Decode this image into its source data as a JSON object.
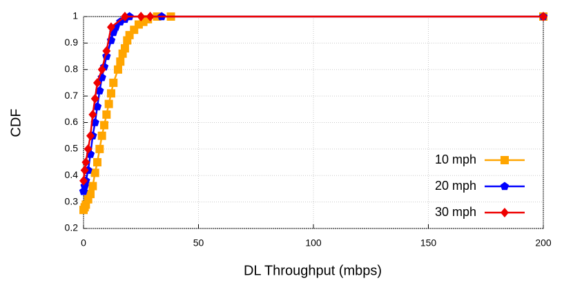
{
  "chart_data": {
    "type": "line",
    "xlabel": "DL Throughput (mbps)",
    "ylabel": "CDF",
    "xlim": [
      0,
      200
    ],
    "xticks": [
      0,
      50,
      100,
      150,
      200
    ],
    "ylim": [
      0.2,
      1
    ],
    "yticks": [
      0.2,
      0.3,
      0.4,
      0.5,
      0.6,
      0.7,
      0.8,
      0.9,
      1
    ],
    "grid": true,
    "legend": "lower right",
    "series": [
      {
        "name": "10 mph",
        "color": "#ffa500",
        "marker": "square",
        "x": [
          0,
          0.5,
          1,
          2,
          3,
          4,
          5,
          6,
          7,
          8,
          9,
          10,
          11,
          12,
          13,
          15,
          16,
          17,
          18,
          19,
          20,
          22,
          24,
          26,
          28,
          32,
          38,
          200
        ],
        "values": [
          0.27,
          0.28,
          0.29,
          0.31,
          0.33,
          0.36,
          0.41,
          0.45,
          0.5,
          0.55,
          0.59,
          0.63,
          0.67,
          0.71,
          0.75,
          0.8,
          0.83,
          0.86,
          0.88,
          0.91,
          0.93,
          0.95,
          0.97,
          0.98,
          0.99,
          1,
          1,
          1
        ]
      },
      {
        "name": "20 mph",
        "color": "#0000ff",
        "marker": "pentagon",
        "x": [
          0,
          0.5,
          1,
          2,
          3,
          4,
          5,
          6,
          7,
          8,
          9,
          10,
          12,
          13,
          14,
          16,
          18,
          20,
          34,
          200
        ],
        "values": [
          0.34,
          0.36,
          0.38,
          0.42,
          0.48,
          0.55,
          0.6,
          0.66,
          0.72,
          0.77,
          0.81,
          0.85,
          0.91,
          0.94,
          0.96,
          0.98,
          0.99,
          1,
          1,
          1
        ]
      },
      {
        "name": "30 mph",
        "color": "#ee0000",
        "marker": "diamond",
        "x": [
          0,
          0.5,
          1,
          2,
          3,
          4,
          5,
          6,
          8,
          10,
          12,
          18,
          25,
          29,
          200
        ],
        "values": [
          0.38,
          0.42,
          0.45,
          0.5,
          0.55,
          0.63,
          0.69,
          0.75,
          0.8,
          0.87,
          0.96,
          1,
          1,
          1,
          1
        ]
      }
    ]
  }
}
